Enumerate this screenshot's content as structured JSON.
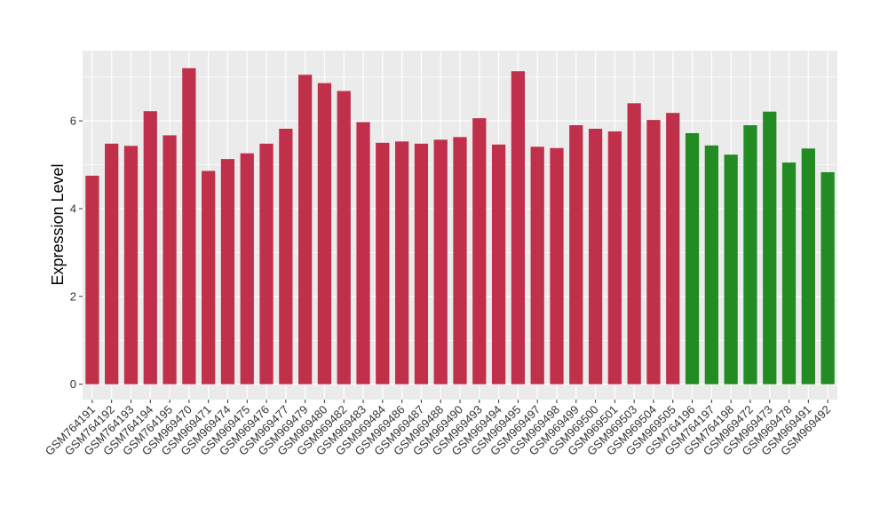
{
  "chart_data": {
    "type": "bar",
    "ylabel": "Expression Level",
    "xlabel": "",
    "ylim": [
      -0.35,
      7.6
    ],
    "yticks": [
      0,
      2,
      4,
      6
    ],
    "grid": true,
    "colors": {
      "group_a": "#C0304A",
      "group_b": "#228B22",
      "panel": "#EBEBEB",
      "grid": "#FFFFFF"
    },
    "categories": [
      "GSM764191",
      "GSM764192",
      "GSM764193",
      "GSM764194",
      "GSM764195",
      "GSM969470",
      "GSM969471",
      "GSM969474",
      "GSM969475",
      "GSM969476",
      "GSM969477",
      "GSM969479",
      "GSM969480",
      "GSM969482",
      "GSM969483",
      "GSM969484",
      "GSM969486",
      "GSM969487",
      "GSM969488",
      "GSM969490",
      "GSM969493",
      "GSM969494",
      "GSM969495",
      "GSM969497",
      "GSM969498",
      "GSM969499",
      "GSM969500",
      "GSM969501",
      "GSM969503",
      "GSM969504",
      "GSM969505",
      "GSM764196",
      "GSM764197",
      "GSM764198",
      "GSM969472",
      "GSM969473",
      "GSM969478",
      "GSM969491",
      "GSM969492"
    ],
    "values": [
      4.75,
      5.48,
      5.43,
      6.22,
      5.67,
      7.2,
      4.86,
      5.13,
      5.26,
      5.48,
      5.82,
      7.05,
      6.86,
      6.68,
      5.97,
      5.5,
      5.53,
      5.48,
      5.57,
      5.63,
      6.06,
      5.46,
      7.13,
      5.41,
      5.38,
      5.9,
      5.82,
      5.76,
      6.4,
      6.02,
      6.18,
      5.72,
      5.44,
      5.23,
      5.9,
      6.21,
      5.05,
      5.37,
      4.83
    ],
    "groups": [
      "a",
      "a",
      "a",
      "a",
      "a",
      "a",
      "a",
      "a",
      "a",
      "a",
      "a",
      "a",
      "a",
      "a",
      "a",
      "a",
      "a",
      "a",
      "a",
      "a",
      "a",
      "a",
      "a",
      "a",
      "a",
      "a",
      "a",
      "a",
      "a",
      "a",
      "a",
      "b",
      "b",
      "b",
      "b",
      "b",
      "b",
      "b",
      "b"
    ]
  }
}
